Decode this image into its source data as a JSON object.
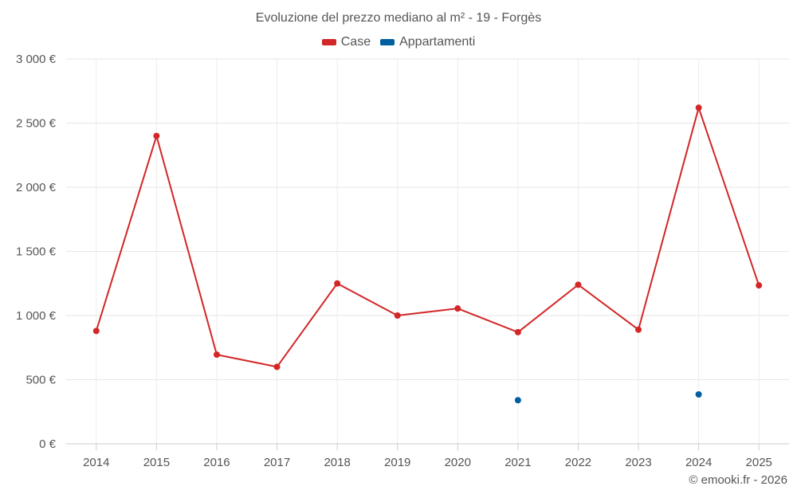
{
  "chart_data": {
    "type": "line",
    "title": "Evoluzione del prezzo mediano al m² - 19 - Forgès",
    "categories": [
      "2014",
      "2015",
      "2016",
      "2017",
      "2018",
      "2019",
      "2020",
      "2021",
      "2022",
      "2023",
      "2024",
      "2025"
    ],
    "y_tick_labels": [
      "0 €",
      "500 €",
      "1 000 €",
      "1 500 €",
      "2 000 €",
      "2 500 €",
      "3 000 €"
    ],
    "y_ticks": [
      0,
      500,
      1000,
      1500,
      2000,
      2500,
      3000
    ],
    "ylim": [
      0,
      3000
    ],
    "series": [
      {
        "name": "Case",
        "color": "#d32626",
        "line": true,
        "values": [
          880,
          2400,
          695,
          600,
          1250,
          1000,
          1055,
          870,
          1240,
          890,
          2620,
          1235
        ]
      },
      {
        "name": "Appartamenti",
        "color": "#005f9e",
        "line": false,
        "values": [
          null,
          null,
          null,
          null,
          null,
          null,
          null,
          340,
          null,
          null,
          385,
          null
        ]
      }
    ],
    "legend": [
      {
        "label": "Case",
        "color": "#d32626"
      },
      {
        "label": "Appartamenti",
        "color": "#005f9e"
      }
    ],
    "grid": true
  },
  "credit": "© emooki.fr - 2026"
}
